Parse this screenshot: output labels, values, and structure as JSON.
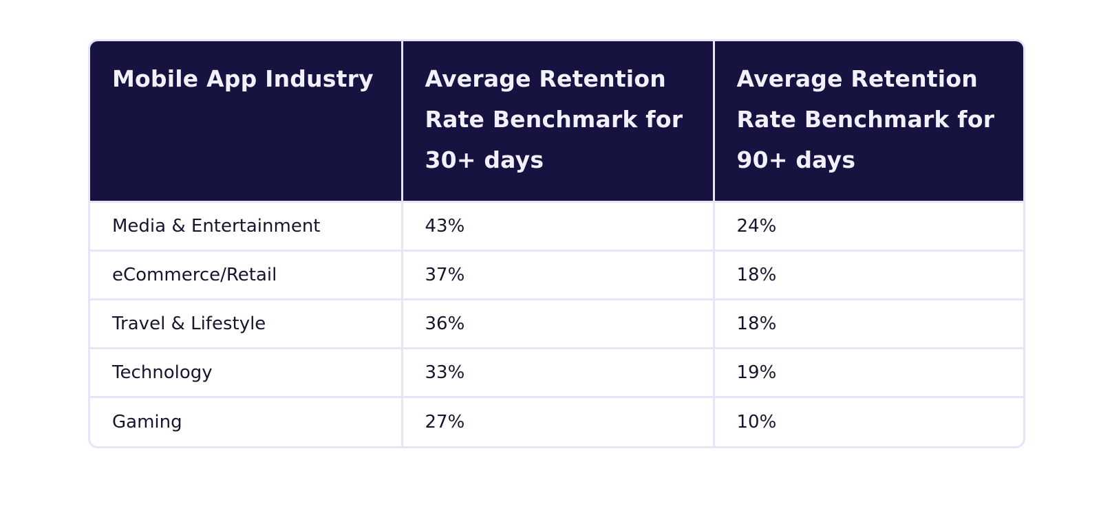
{
  "table": {
    "headers": [
      "Mobile App Industry",
      "Average Retention Rate Benchmark for 30+ days",
      "Average Retention Rate Benchmark for 90+ days"
    ],
    "rows": [
      [
        "Media & Entertainment",
        "43%",
        "24%"
      ],
      [
        "eCommerce/Retail",
        "37%",
        "18%"
      ],
      [
        "Travel & Lifestyle",
        "36%",
        "18%"
      ],
      [
        "Technology",
        "33%",
        "19%"
      ],
      [
        "Gaming",
        "27%",
        "10%"
      ]
    ]
  },
  "colors": {
    "header_bg": "#171340",
    "header_text": "#f1f0fb",
    "border": "#e6e4f7",
    "body_text": "#17142e"
  }
}
